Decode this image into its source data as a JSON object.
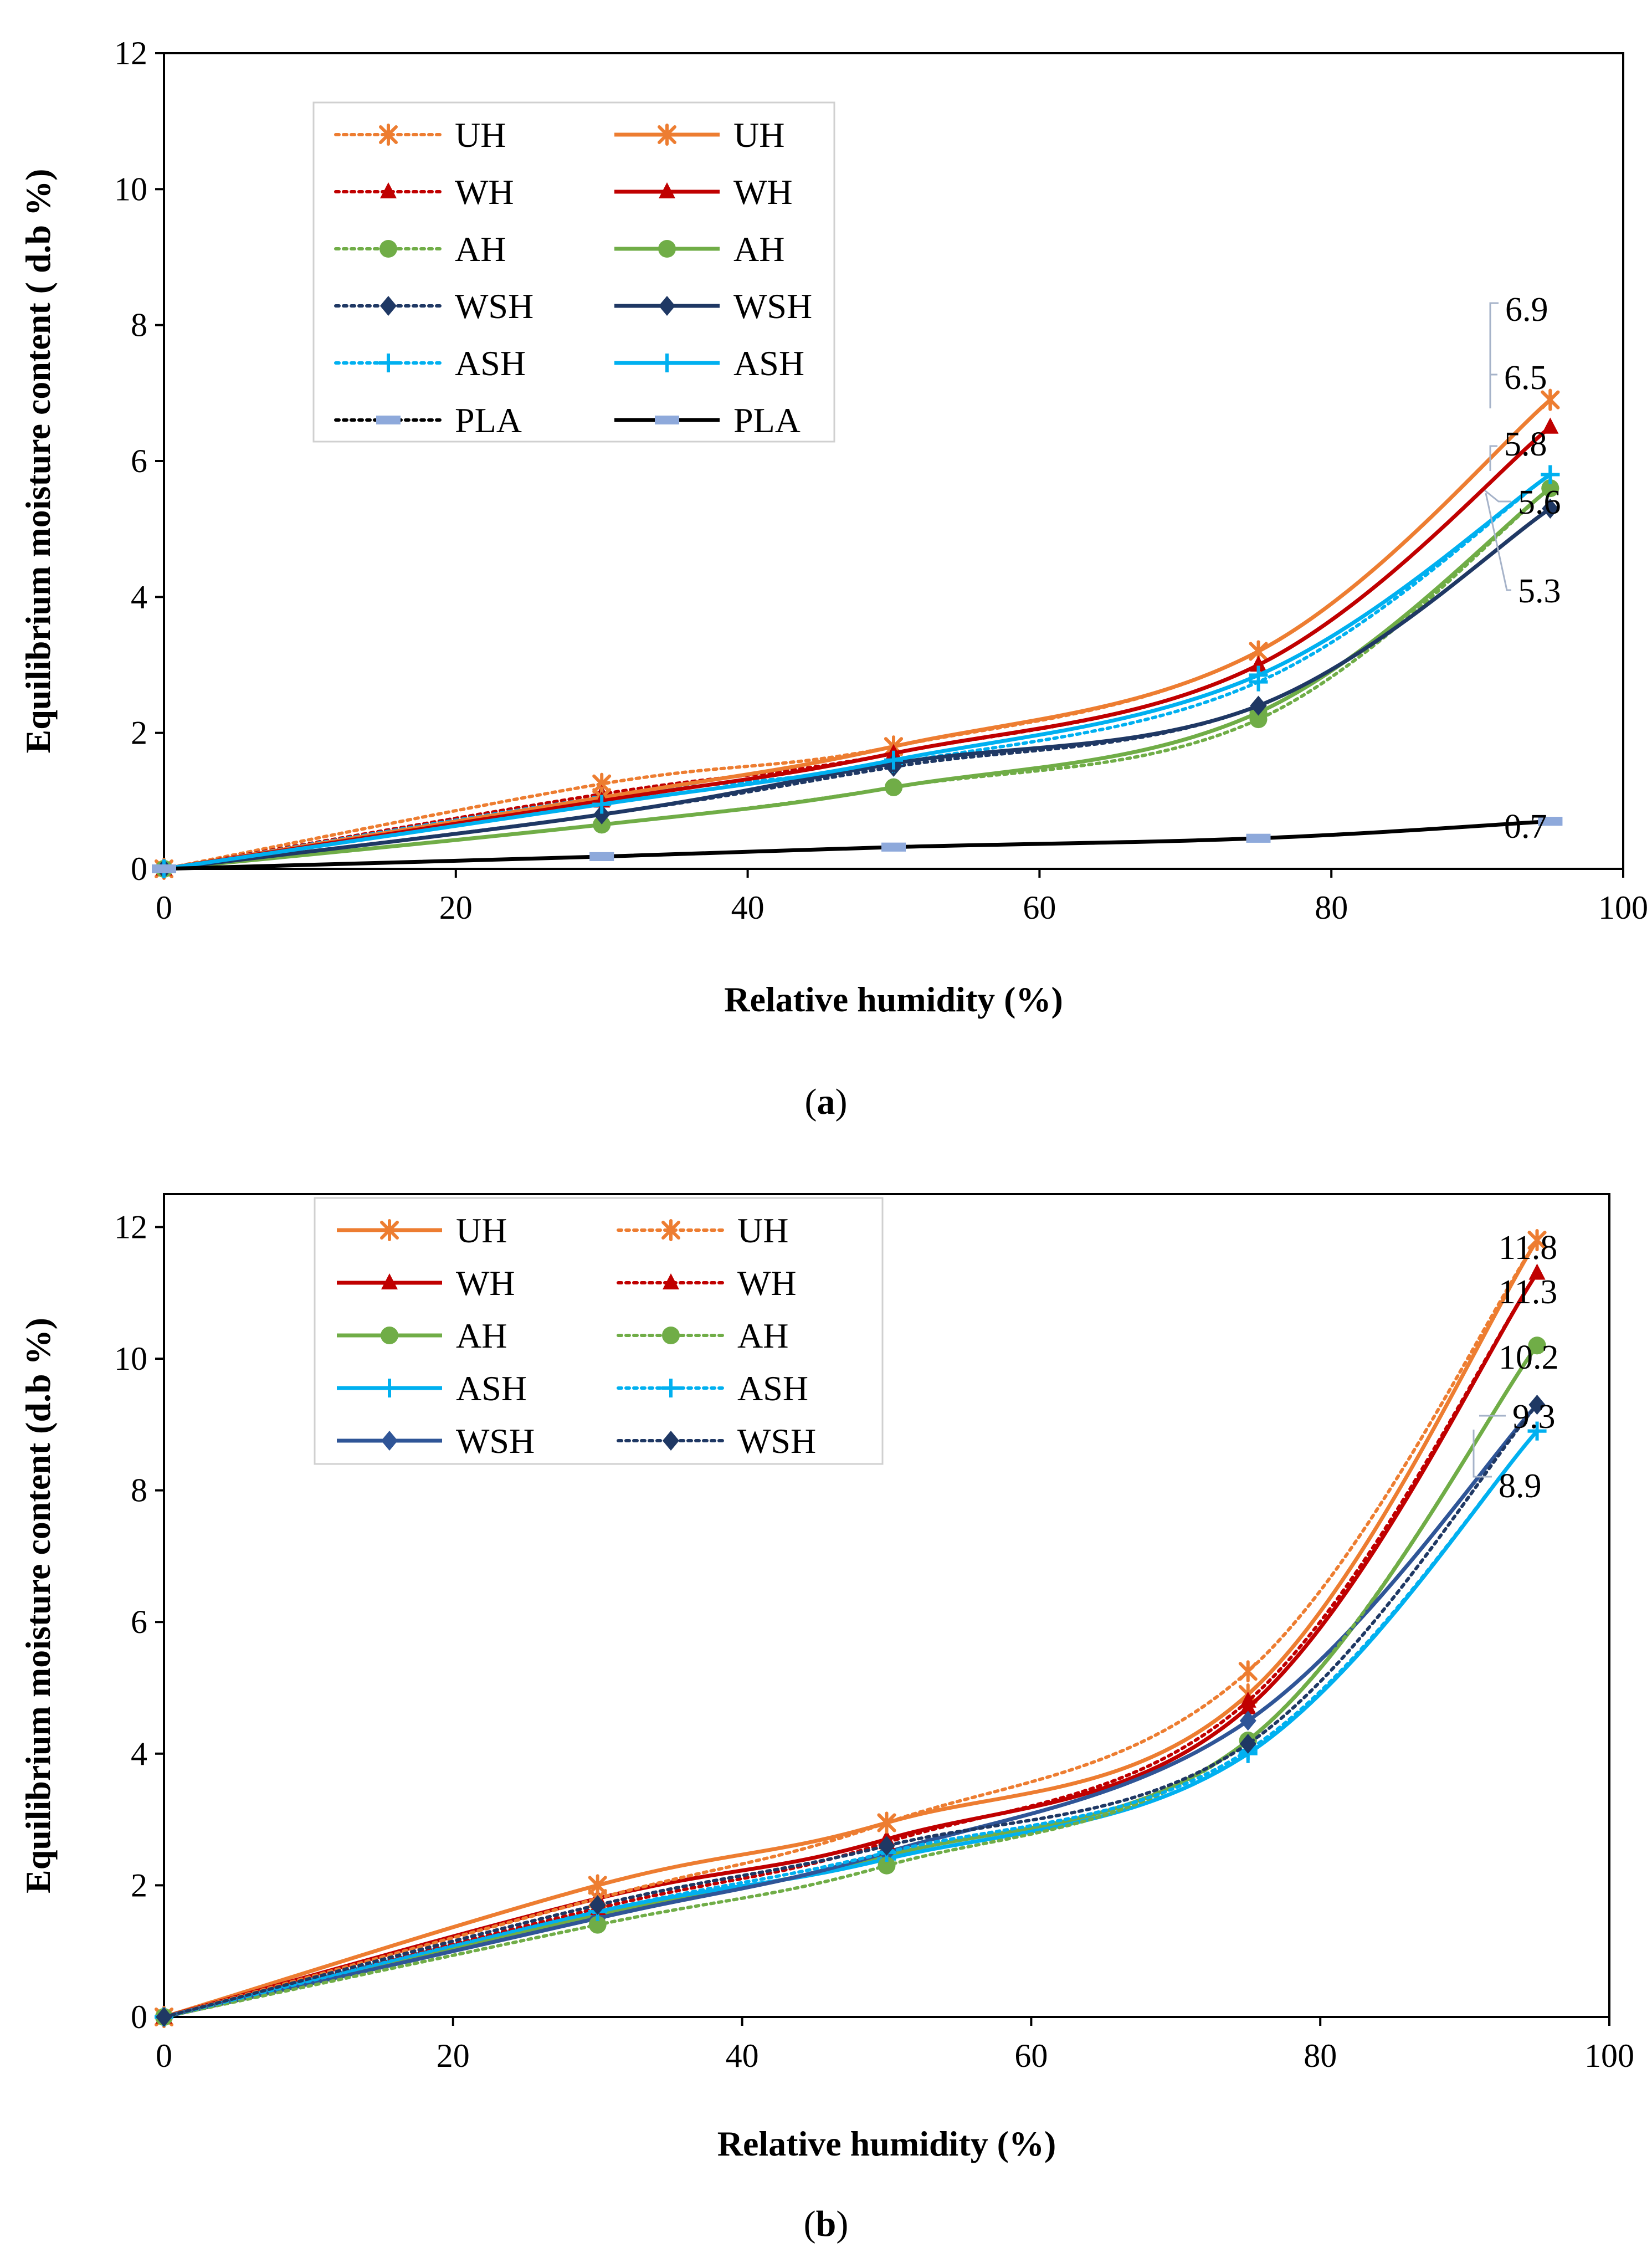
{
  "chart_data": [
    {
      "type": "line",
      "panel": "a",
      "caption_letter": "a",
      "xlabel": "Relative humidity (%)",
      "ylabel": "Equilibrium moisture content ( d.b %)",
      "xlim": [
        0,
        100
      ],
      "ylim": [
        0,
        12
      ],
      "xticks": [
        0,
        20,
        40,
        60,
        80,
        100
      ],
      "yticks": [
        0,
        2,
        4,
        6,
        8,
        10,
        12
      ],
      "x": [
        0,
        30,
        50,
        75,
        95
      ],
      "series": [
        {
          "name": "UH",
          "style": "dotted",
          "marker": "star",
          "color": "#ED7D31",
          "values": [
            0,
            1.25,
            1.8,
            3.2,
            6.9
          ]
        },
        {
          "name": "WH",
          "style": "dotted",
          "marker": "triangle",
          "color": "#C00000",
          "values": [
            0,
            1.1,
            1.7,
            3.0,
            6.5
          ]
        },
        {
          "name": "AH",
          "style": "dotted",
          "marker": "circle",
          "color": "#70AD47",
          "values": [
            0,
            0.65,
            1.2,
            2.2,
            5.6
          ]
        },
        {
          "name": "WSH",
          "style": "dotted",
          "marker": "diamond",
          "color": "#1F3864",
          "values": [
            0,
            0.8,
            1.5,
            2.4,
            5.3
          ]
        },
        {
          "name": "ASH",
          "style": "dotted",
          "marker": "plus",
          "color": "#00B0F0",
          "values": [
            0,
            1.05,
            1.55,
            2.75,
            5.8
          ]
        },
        {
          "name": "PLA",
          "style": "dotted",
          "marker": "dash",
          "color": "#000000",
          "values": [
            0,
            0.18,
            0.32,
            0.45,
            0.7
          ]
        },
        {
          "name": "UH",
          "style": "solid",
          "marker": "star",
          "color": "#ED7D31",
          "values": [
            0,
            1.05,
            1.8,
            3.2,
            6.9
          ]
        },
        {
          "name": "WH",
          "style": "solid",
          "marker": "triangle",
          "color": "#C00000",
          "values": [
            0,
            1.0,
            1.7,
            3.0,
            6.5
          ]
        },
        {
          "name": "AH",
          "style": "solid",
          "marker": "circle",
          "color": "#70AD47",
          "values": [
            0,
            0.65,
            1.2,
            2.3,
            5.6
          ]
        },
        {
          "name": "WSH",
          "style": "solid",
          "marker": "diamond",
          "color": "#1F3864",
          "values": [
            0,
            0.8,
            1.55,
            2.4,
            5.3
          ]
        },
        {
          "name": "ASH",
          "style": "solid",
          "marker": "plus",
          "color": "#00B0F0",
          "values": [
            0,
            0.95,
            1.6,
            2.85,
            5.8
          ]
        },
        {
          "name": "PLA",
          "style": "solid",
          "marker": "dash",
          "color": "#000000",
          "values": [
            0,
            0.18,
            0.32,
            0.45,
            0.7
          ]
        }
      ],
      "annotations": [
        "6.9",
        "6.5",
        "5.8",
        "5.6",
        "5.3",
        "0.7"
      ]
    },
    {
      "type": "line",
      "panel": "b",
      "caption_letter": "b",
      "xlabel": "Relative humidity (%)",
      "ylabel": "Equilibrium moisture content (d.b %)",
      "xlim": [
        0,
        100
      ],
      "ylim": [
        0,
        12.5
      ],
      "xticks": [
        0,
        20,
        40,
        60,
        80,
        100
      ],
      "yticks": [
        0,
        2,
        4,
        6,
        8,
        10,
        12
      ],
      "x": [
        0,
        30,
        50,
        75,
        95
      ],
      "series": [
        {
          "name": "UH",
          "style": "solid",
          "marker": "star",
          "color": "#ED7D31",
          "values": [
            0,
            2.0,
            2.95,
            4.9,
            11.8
          ]
        },
        {
          "name": "WH",
          "style": "solid",
          "marker": "triangle",
          "color": "#C00000",
          "values": [
            0,
            1.8,
            2.7,
            4.7,
            11.3
          ]
        },
        {
          "name": "AH",
          "style": "solid",
          "marker": "circle",
          "color": "#70AD47",
          "values": [
            0,
            1.55,
            2.45,
            4.2,
            10.2
          ]
        },
        {
          "name": "ASH",
          "style": "solid",
          "marker": "plus",
          "color": "#00B0F0",
          "values": [
            0,
            1.6,
            2.4,
            4.0,
            8.9
          ]
        },
        {
          "name": "WSH",
          "style": "solid",
          "marker": "diamond",
          "color": "#2F5597",
          "values": [
            0,
            1.5,
            2.5,
            4.5,
            9.3
          ]
        },
        {
          "name": "UH",
          "style": "dotted",
          "marker": "star",
          "color": "#ED7D31",
          "values": [
            0,
            1.8,
            2.95,
            5.25,
            11.8
          ]
        },
        {
          "name": "WH",
          "style": "dotted",
          "marker": "triangle",
          "color": "#C00000",
          "values": [
            0,
            1.65,
            2.65,
            4.8,
            11.3
          ]
        },
        {
          "name": "AH",
          "style": "dotted",
          "marker": "circle",
          "color": "#70AD47",
          "values": [
            0,
            1.4,
            2.3,
            4.2,
            10.2
          ]
        },
        {
          "name": "ASH",
          "style": "dotted",
          "marker": "plus",
          "color": "#00B0F0",
          "values": [
            0,
            1.6,
            2.5,
            4.05,
            8.9
          ]
        },
        {
          "name": "WSH",
          "style": "dotted",
          "marker": "diamond",
          "color": "#1F3864",
          "values": [
            0,
            1.7,
            2.6,
            4.15,
            9.3
          ]
        }
      ],
      "annotations": [
        "11.8",
        "11.3",
        "10.2",
        "9.3",
        "8.9"
      ]
    }
  ]
}
